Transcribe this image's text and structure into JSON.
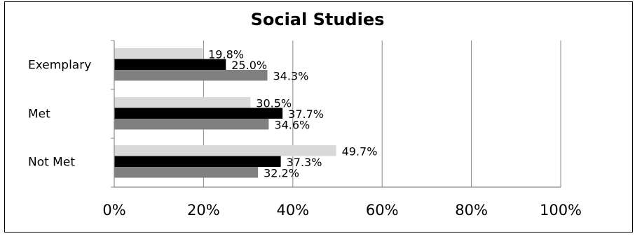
{
  "chart_data": {
    "type": "bar",
    "orientation": "horizontal",
    "title": "Social Studies",
    "categories": [
      "Exemplary",
      "Met",
      "Not Met"
    ],
    "series": [
      {
        "color": "#d9d9d9",
        "values": [
          19.8,
          30.5,
          49.7
        ]
      },
      {
        "color": "#000000",
        "values": [
          25.0,
          37.7,
          37.3
        ]
      },
      {
        "color": "#808080",
        "values": [
          34.3,
          34.6,
          32.2
        ]
      }
    ],
    "data_labels": [
      [
        "19.8%",
        "30.5%",
        "49.7%"
      ],
      [
        "25.0%",
        "37.7%",
        "37.3%"
      ],
      [
        "34.3%",
        "34.6%",
        "32.2%"
      ]
    ],
    "xlim": [
      0,
      100
    ],
    "x_ticks": [
      0,
      20,
      40,
      60,
      80,
      100
    ],
    "x_tick_labels": [
      "0%",
      "20%",
      "40%",
      "60%",
      "80%",
      "100%"
    ],
    "grid": "vertical",
    "legend": "none"
  }
}
